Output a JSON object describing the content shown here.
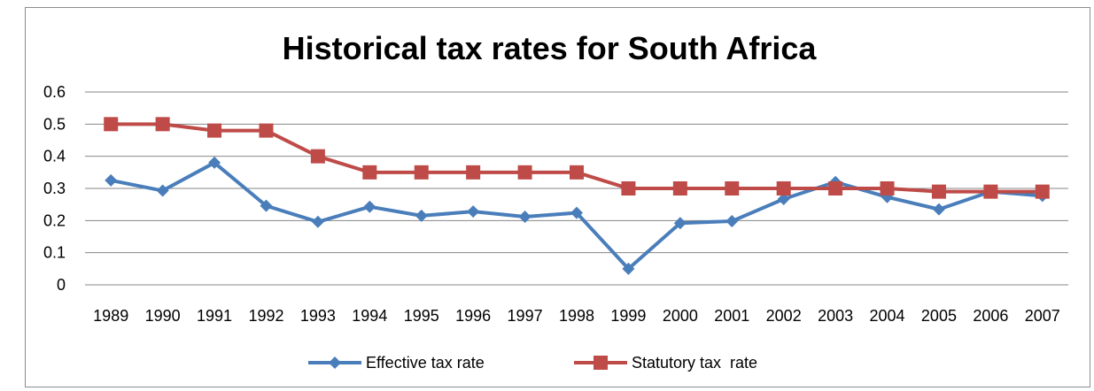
{
  "chart_data": {
    "type": "line",
    "title": "Historical tax rates for South Africa",
    "xlabel": "",
    "ylabel": "",
    "ylim": [
      0,
      0.6
    ],
    "yticks": [
      "0",
      "0.1",
      "0.2",
      "0.3",
      "0.4",
      "0.5",
      "0.6"
    ],
    "grid": true,
    "legend_position": "bottom",
    "categories": [
      "1989",
      "1990",
      "1991",
      "1992",
      "1993",
      "1994",
      "1995",
      "1996",
      "1997",
      "1998",
      "1999",
      "2000",
      "2001",
      "2002",
      "2003",
      "2004",
      "2005",
      "2006",
      "2007"
    ],
    "series": [
      {
        "name": "Effective tax rate",
        "color": "#4a7ebb",
        "marker": "diamond",
        "values": [
          0.325,
          0.293,
          0.38,
          0.246,
          0.196,
          0.243,
          0.215,
          0.228,
          0.212,
          0.224,
          0.05,
          0.192,
          0.198,
          0.267,
          0.32,
          0.273,
          0.235,
          0.29,
          0.277
        ]
      },
      {
        "name": "Statutory tax  rate",
        "color": "#be4b48",
        "marker": "square",
        "values": [
          0.5,
          0.5,
          0.48,
          0.48,
          0.4,
          0.35,
          0.35,
          0.35,
          0.35,
          0.35,
          0.3,
          0.3,
          0.3,
          0.3,
          0.3,
          0.3,
          0.29,
          0.29,
          0.29
        ]
      }
    ]
  }
}
